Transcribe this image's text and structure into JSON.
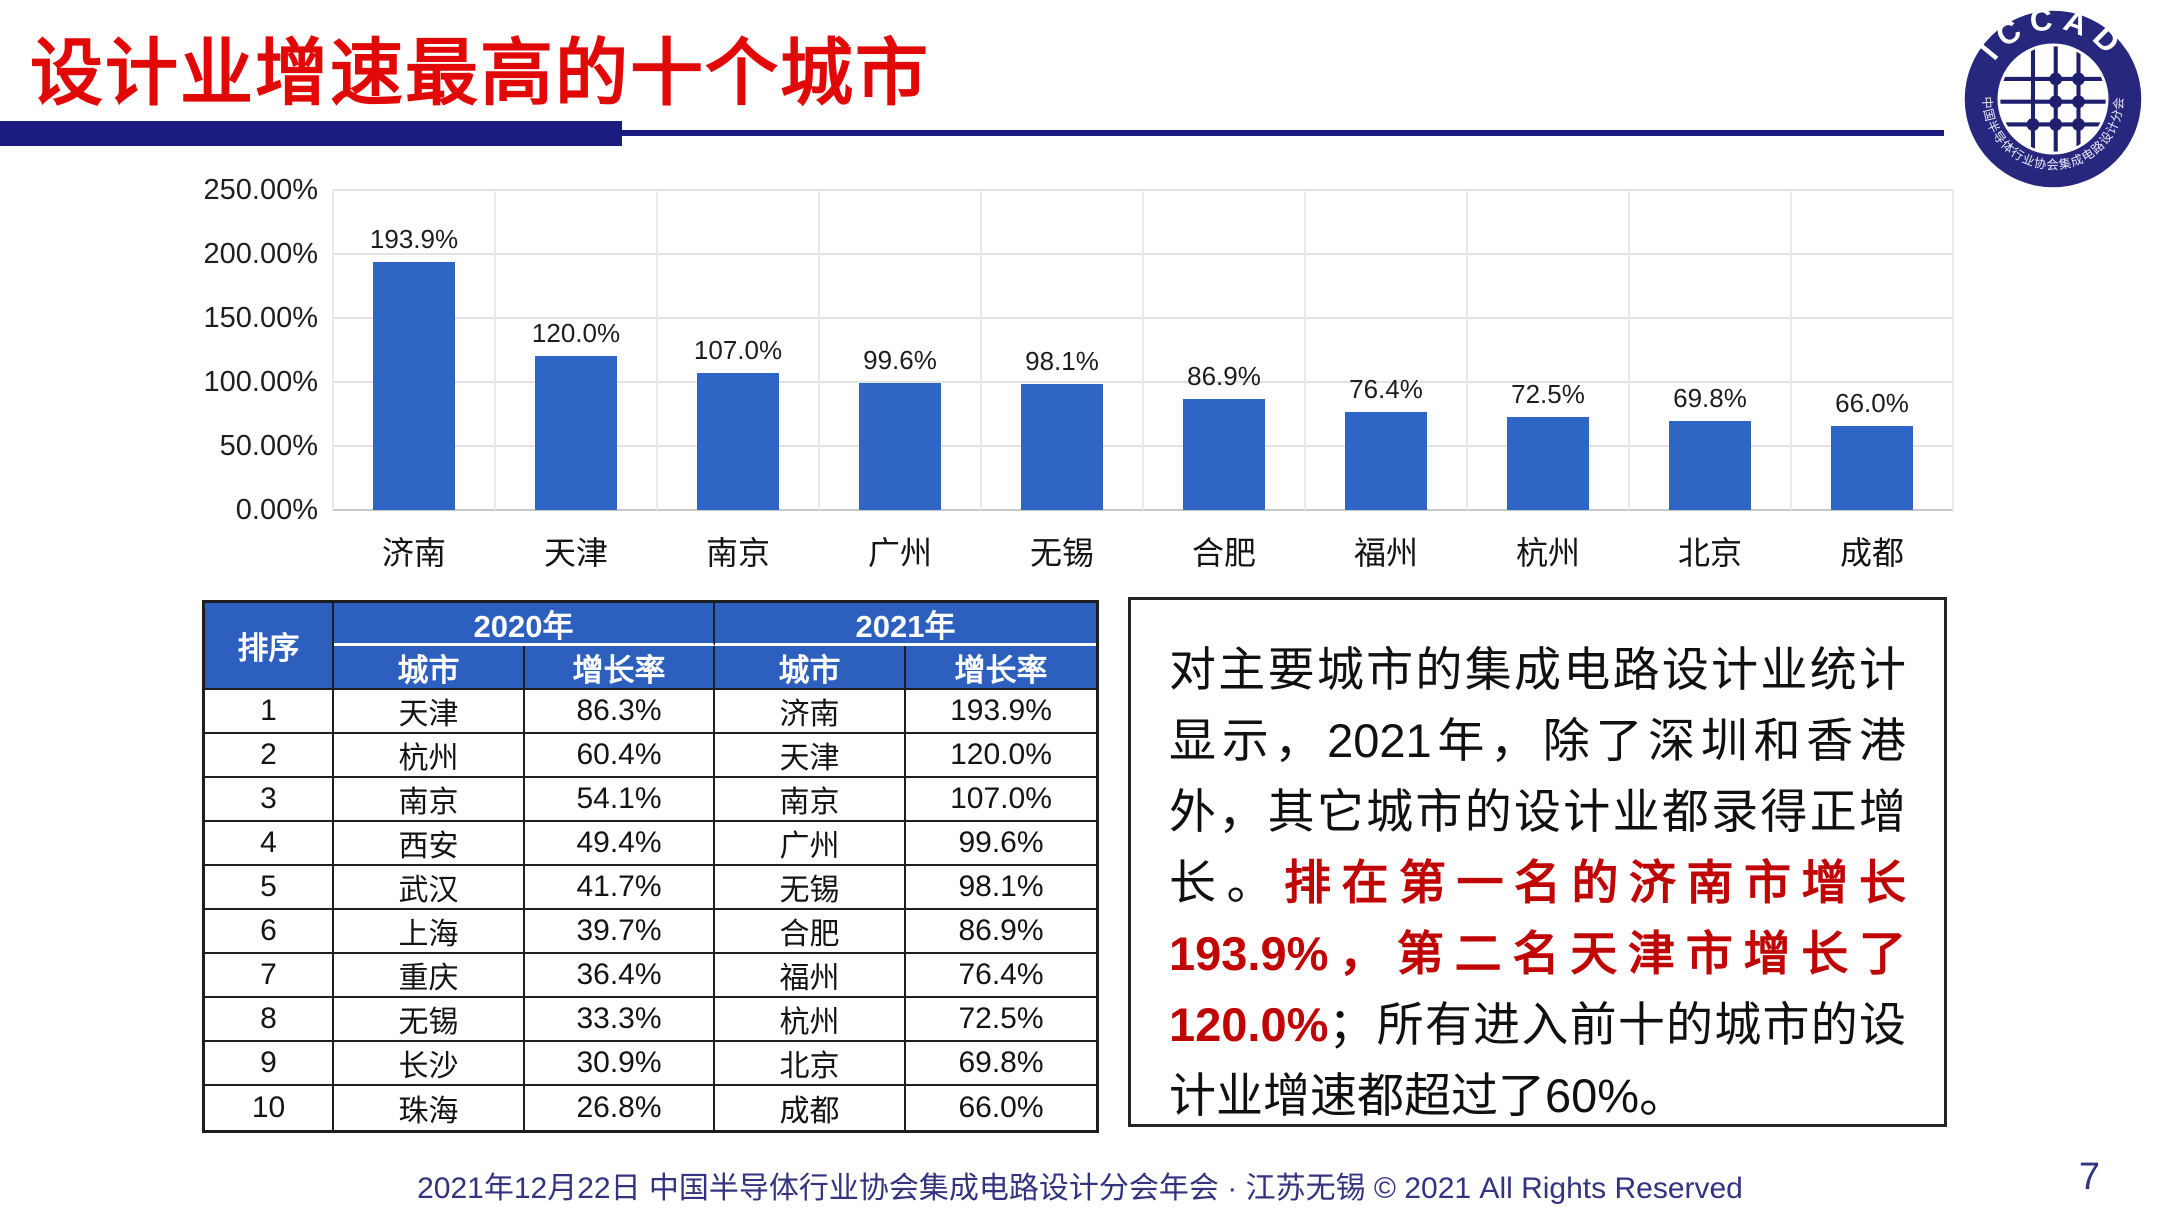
{
  "slide": {
    "title": "设计业增速最高的十个城市",
    "footer": "2021年12月22日 中国半导体行业协会集成电路设计分会年会 · 江苏无锡 © 2021 All Rights Reserved",
    "page_number": "7"
  },
  "logo": {
    "arc_top": "ICCAD",
    "arc_bottom": "中国半导体行业协会集成电路设计分会",
    "ring_color": "#27277E",
    "grid_color": "#1F1F6E"
  },
  "chart_data": {
    "type": "bar",
    "title": "",
    "xlabel": "",
    "ylabel": "",
    "categories": [
      "济南",
      "天津",
      "南京",
      "广州",
      "无锡",
      "合肥",
      "福州",
      "杭州",
      "北京",
      "成都"
    ],
    "values": [
      193.9,
      120.0,
      107.0,
      99.6,
      98.1,
      86.9,
      76.4,
      72.5,
      69.8,
      66.0
    ],
    "bar_labels": [
      "193.9%",
      "120.0%",
      "107.0%",
      "99.6%",
      "98.1%",
      "86.9%",
      "76.4%",
      "72.5%",
      "69.8%",
      "66.0%"
    ],
    "y_ticks": [
      "250.00%",
      "200.00%",
      "150.00%",
      "100.00%",
      "50.00%",
      "0.00%"
    ],
    "ylim": [
      0,
      250
    ],
    "grid": true,
    "legend": false,
    "bar_color": "#2F66C5"
  },
  "table": {
    "rank_header": "排序",
    "year_headers": [
      "2020年",
      "2021年"
    ],
    "sub_headers": [
      "城市",
      "增长率",
      "城市",
      "增长率"
    ],
    "header_bg": "#2C5FBE",
    "rows": [
      [
        "1",
        "天津",
        "86.3%",
        "济南",
        "193.9%"
      ],
      [
        "2",
        "杭州",
        "60.4%",
        "天津",
        "120.0%"
      ],
      [
        "3",
        "南京",
        "54.1%",
        "南京",
        "107.0%"
      ],
      [
        "4",
        "西安",
        "49.4%",
        "广州",
        "99.6%"
      ],
      [
        "5",
        "武汉",
        "41.7%",
        "无锡",
        "98.1%"
      ],
      [
        "6",
        "上海",
        "39.7%",
        "合肥",
        "86.9%"
      ],
      [
        "7",
        "重庆",
        "36.4%",
        "福州",
        "76.4%"
      ],
      [
        "8",
        "无锡",
        "33.3%",
        "杭州",
        "72.5%"
      ],
      [
        "9",
        "长沙",
        "30.9%",
        "北京",
        "69.8%"
      ],
      [
        "10",
        "珠海",
        "26.8%",
        "成都",
        "66.0%"
      ]
    ]
  },
  "note": {
    "black_1": "对主要城市的集成电路设计业统计显示，2021年，除了深圳和香港外，其它城市的设计业都录得正增长。",
    "red": "排在第一名的济南市增长193.9%，第二名天津市增长了120.0%",
    "black_2": "；所有进入前十的城市的设计业增速都超过了60%。",
    "red_color": "#C00505"
  }
}
